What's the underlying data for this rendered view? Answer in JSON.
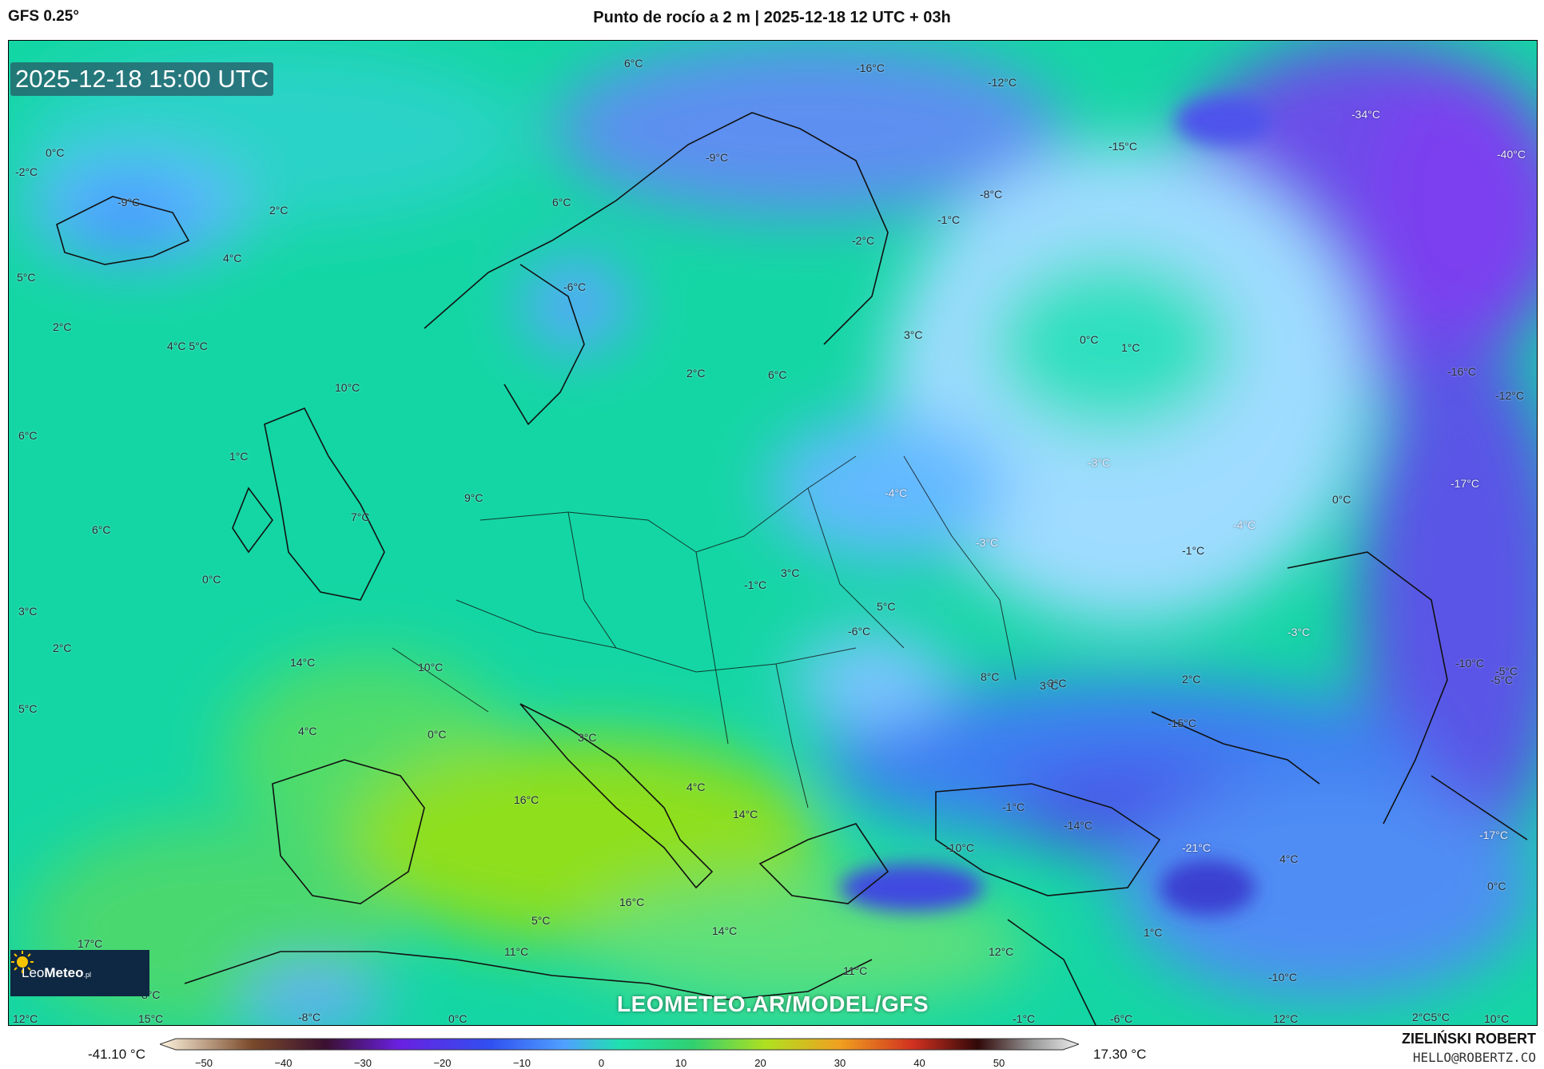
{
  "header": {
    "model": "GFS 0.25°",
    "title": "Punto de rocío a 2 m | 2025-12-18 12 UTC + 03h"
  },
  "map": {
    "timestamp": "2025-12-18 15:00 UTC",
    "watermark": "LEOMETEO.AR/MODEL/GFS",
    "logo": {
      "prefix": "Leo",
      "brand": "Meteo",
      "suffix": ".pl"
    },
    "labels": [
      "6°C",
      "-16°C",
      "-12°C",
      "-34°C",
      "-40°C",
      "0°C",
      "-2°C",
      "-9°C",
      "-9°C",
      "-15°C",
      "-8°C",
      "6°C",
      "2°C",
      "-1°C",
      "-2°C",
      "4°C",
      "5°C",
      "-6°C",
      "3°C",
      "0°C",
      "1°C",
      "2°C",
      "4°C 5°C",
      "-16°C",
      "-12°C",
      "10°C",
      "2°C",
      "6°C",
      "6°C",
      "1°C",
      "-3°C",
      "-17°C",
      "9°C",
      "7°C",
      "-4°C",
      "0°C",
      "6°C",
      "-4°C",
      "-3°C",
      "-1°C",
      "0°C",
      "3°C",
      "-1°C",
      "3°C",
      "5°C",
      "-6°C",
      "-3°C",
      "3°C",
      "14°C",
      "2°C",
      "10°C",
      "-5°C",
      "8°C",
      "3°C",
      "2°C",
      "-10°C",
      "-5°C",
      "5°C",
      "-15°C",
      "4°C",
      "0°C",
      "3°C",
      "4°C",
      "16°C",
      "14°C",
      "-1°C",
      "-14°C",
      "-17°C",
      "-10°C",
      "-21°C",
      "4°C",
      "0°C",
      "16°C",
      "5°C",
      "14°C",
      "1°C",
      "17°C",
      "11°C",
      "11°C",
      "12°C",
      "-10°C",
      "12°C",
      "15°C",
      "-8°C",
      "0°C",
      "-1°C",
      "-6°C",
      "12°C",
      "2°C5°C",
      "10°C",
      "8°C"
    ]
  },
  "legend": {
    "min": "-41.10 °C",
    "max": "17.30 °C",
    "ticks": [
      "−50",
      "−40",
      "−30",
      "−20",
      "−10",
      "0",
      "10",
      "20",
      "30",
      "40",
      "50"
    ]
  },
  "credits": {
    "name": "ZIELIŃSKI ROBERT",
    "email": "HELLO@ROBERTZ.CO"
  }
}
